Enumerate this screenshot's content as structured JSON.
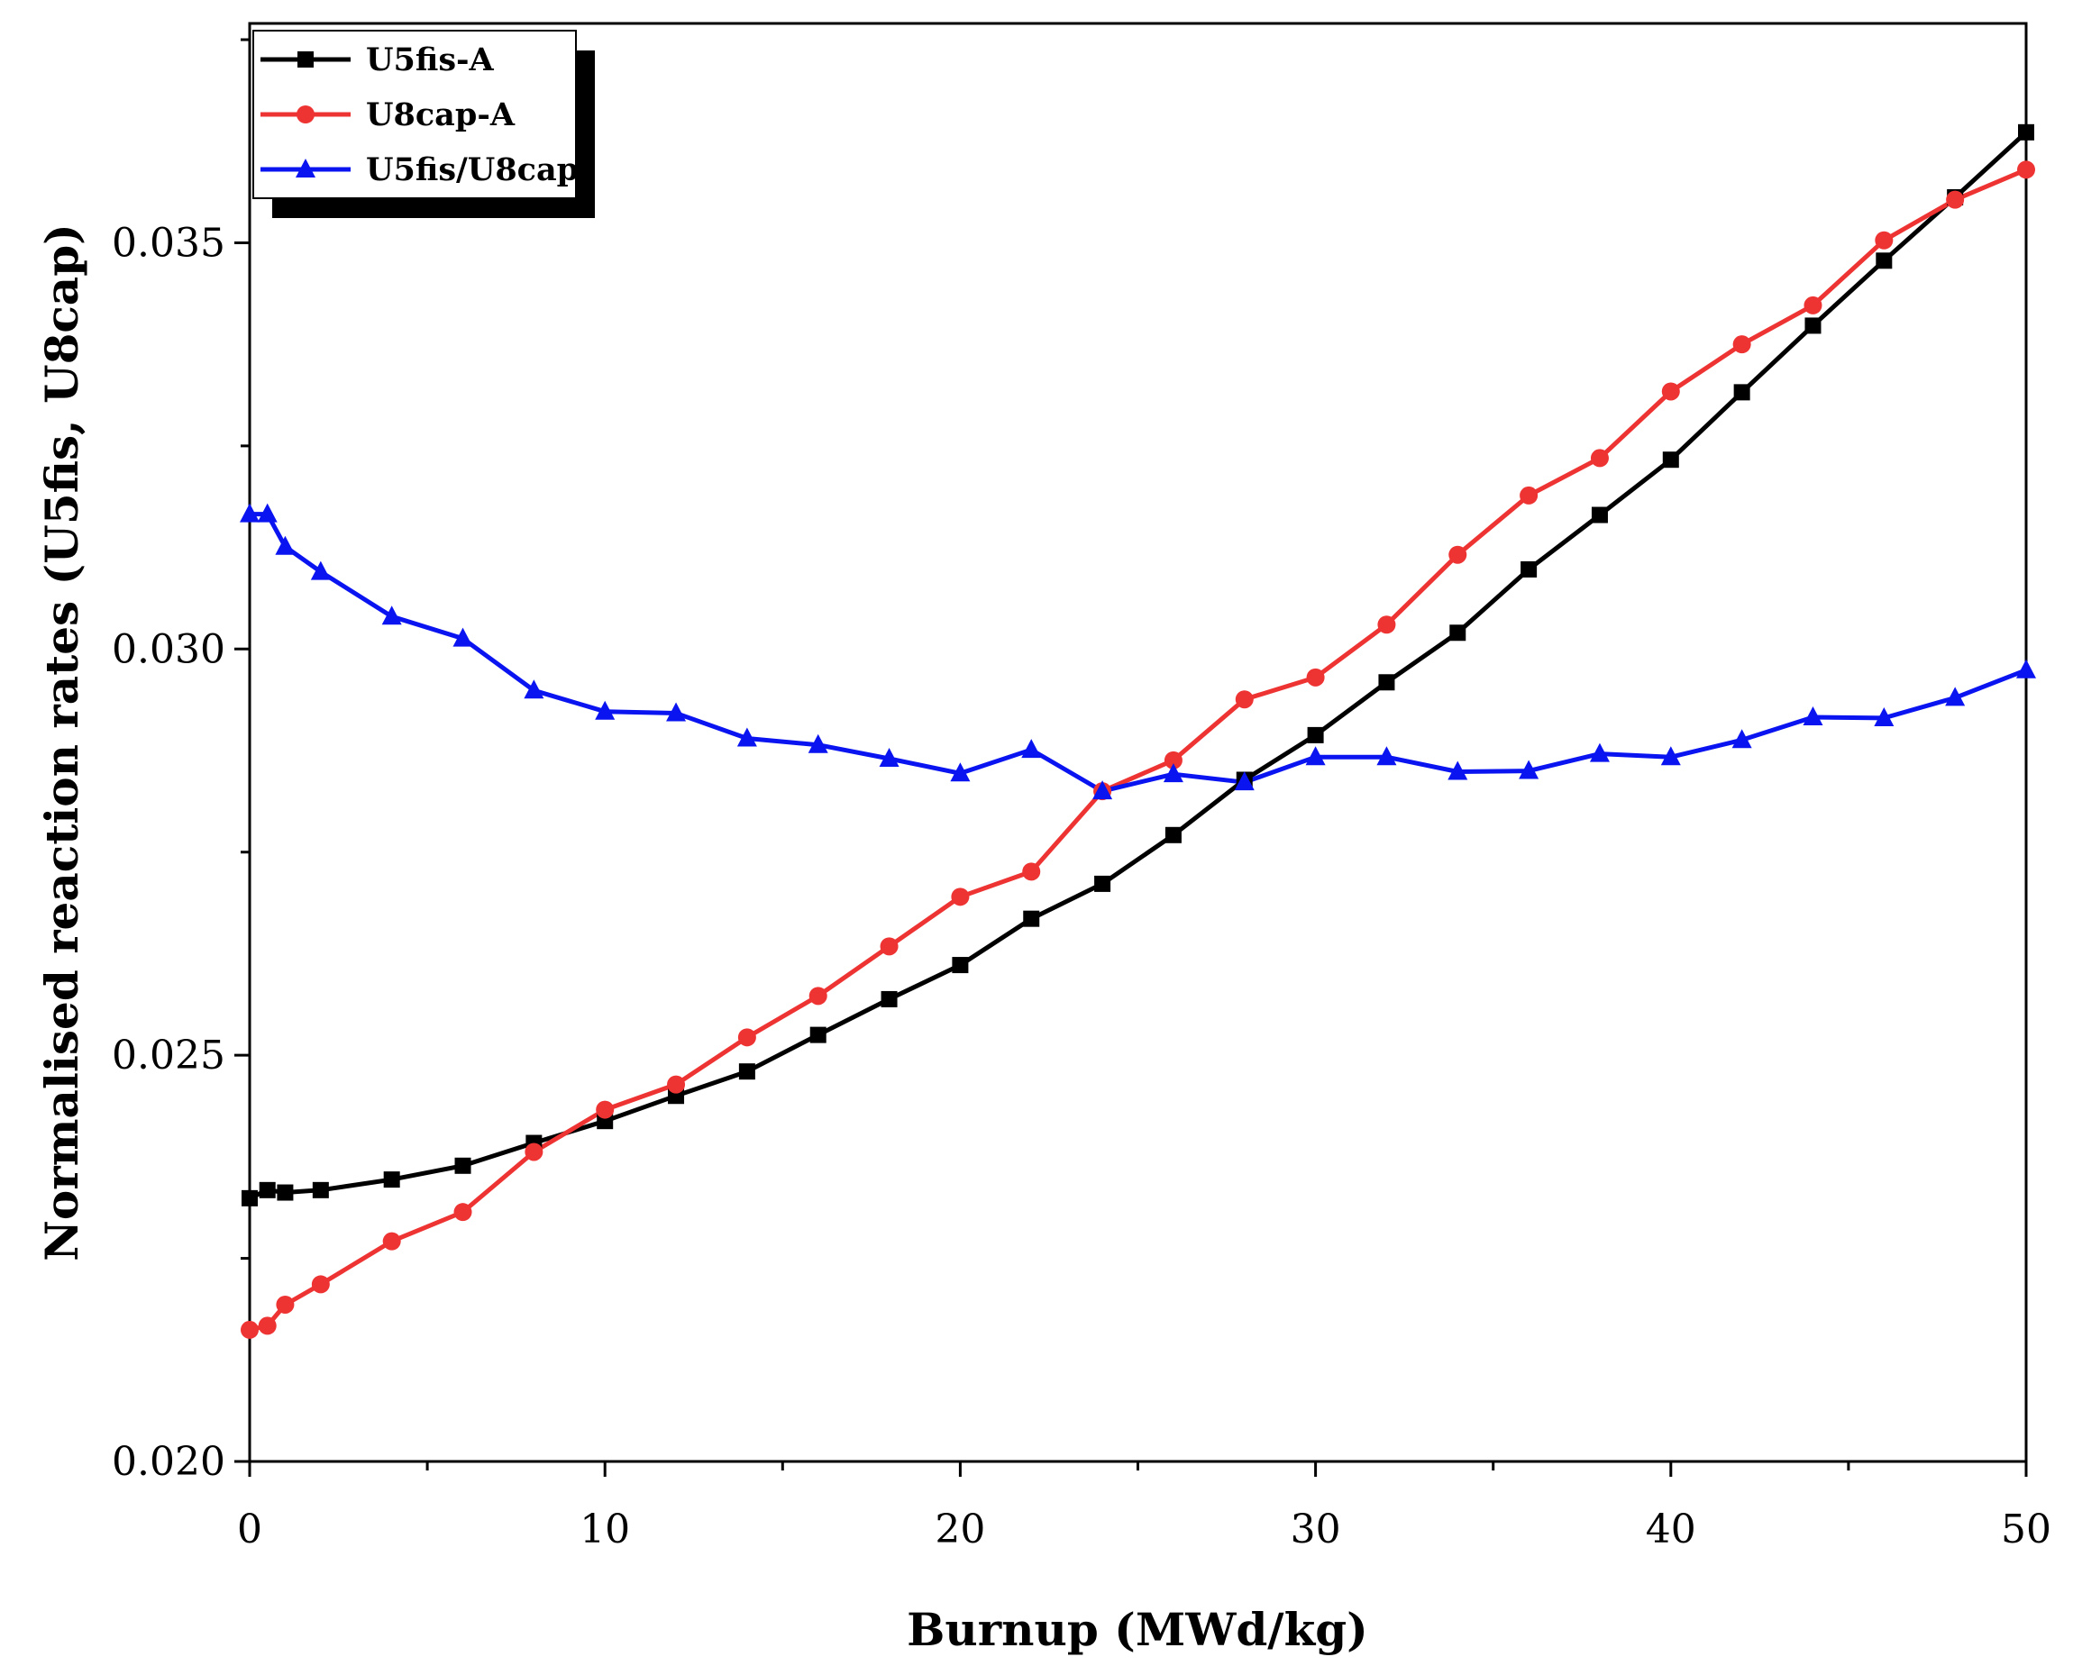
{
  "chart_data": {
    "type": "line",
    "title": "",
    "xlabel": "Burnup (MWd/kg)",
    "ylabel": "Normalised reaction rates (U5fis, U8cap)",
    "xlim": [
      0,
      50
    ],
    "ylim": [
      0.02,
      0.0377
    ],
    "xticks": [
      0,
      10,
      20,
      30,
      40,
      50
    ],
    "xtick_labels": [
      "0",
      "10",
      "20",
      "30",
      "40",
      "50"
    ],
    "yticks": [
      0.02,
      0.025,
      0.03,
      0.035
    ],
    "ytick_labels": [
      "0.020",
      "0.025",
      "0.030",
      "0.035"
    ],
    "grid": false,
    "legend_position": "top-left",
    "series": [
      {
        "name": "U5fis-A",
        "color": "#000000",
        "marker": "square",
        "x": [
          0,
          0.5,
          1,
          2,
          4,
          6,
          8,
          10,
          12,
          14,
          16,
          18,
          20,
          22,
          24,
          26,
          28,
          30,
          32,
          34,
          36,
          38,
          40,
          42,
          44,
          46,
          48,
          50
        ],
        "y": [
          0.02324,
          0.02334,
          0.02331,
          0.02334,
          0.02347,
          0.02364,
          0.02392,
          0.02419,
          0.0245,
          0.0248,
          0.02525,
          0.02569,
          0.02611,
          0.02668,
          0.02711,
          0.02771,
          0.02839,
          0.02894,
          0.02959,
          0.0302,
          0.03098,
          0.03165,
          0.03233,
          0.03316,
          0.03398,
          0.03478,
          0.03556,
          0.03636
        ]
      },
      {
        "name": "U8cap-A",
        "color": "#ee3333",
        "marker": "circle",
        "x": [
          0,
          0.5,
          1,
          2,
          4,
          6,
          8,
          10,
          12,
          14,
          16,
          18,
          20,
          22,
          24,
          26,
          28,
          30,
          32,
          34,
          36,
          38,
          40,
          42,
          44,
          46,
          48,
          50
        ],
        "y": [
          0.02162,
          0.02167,
          0.02193,
          0.02218,
          0.02271,
          0.02307,
          0.02381,
          0.02433,
          0.02464,
          0.02522,
          0.02573,
          0.02634,
          0.02695,
          0.02726,
          0.02825,
          0.02863,
          0.02938,
          0.02965,
          0.0303,
          0.03116,
          0.03189,
          0.03235,
          0.03317,
          0.03375,
          0.03423,
          0.03503,
          0.03553,
          0.0359
        ]
      },
      {
        "name": "U5fis/U8cap",
        "color": "#0a14f0",
        "marker": "triangle",
        "x": [
          0,
          0.5,
          1,
          2,
          4,
          6,
          8,
          10,
          12,
          14,
          16,
          18,
          20,
          22,
          24,
          26,
          28,
          30,
          32,
          34,
          36,
          38,
          40,
          42,
          44,
          46,
          48,
          50
        ],
        "y": [
          0.03166,
          0.03166,
          0.03126,
          0.03095,
          0.0304,
          0.03013,
          0.02949,
          0.02923,
          0.02921,
          0.0289,
          0.02882,
          0.02865,
          0.02847,
          0.02876,
          0.02825,
          0.02846,
          0.02836,
          0.02867,
          0.02867,
          0.02849,
          0.0285,
          0.02871,
          0.02867,
          0.02888,
          0.02916,
          0.02915,
          0.0294,
          0.02974
        ]
      }
    ]
  }
}
